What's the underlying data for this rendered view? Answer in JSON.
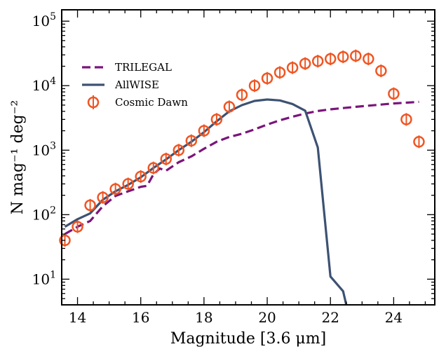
{
  "chart_data": {
    "type": "line",
    "xlabel": "Magnitude [3.6 μm]",
    "ylabel": "N  mag⁻¹ deg⁻²",
    "xlim": [
      13.5,
      25.3
    ],
    "ylim": [
      4,
      150000
    ],
    "yscale": "log",
    "x_ticks": [
      "14",
      "16",
      "18",
      "20",
      "22",
      "24"
    ],
    "y_ticks": [
      {
        "base": "10",
        "exp": "1"
      },
      {
        "base": "10",
        "exp": "2"
      },
      {
        "base": "10",
        "exp": "3"
      },
      {
        "base": "10",
        "exp": "4"
      },
      {
        "base": "10",
        "exp": "5"
      }
    ],
    "legend_position": "upper-left",
    "series": [
      {
        "name": "TRILEGAL",
        "style": "dashed",
        "color": "#7b157a",
        "x": [
          13.6,
          14.0,
          14.4,
          14.8,
          15.2,
          15.6,
          16.0,
          16.2,
          16.4,
          16.6,
          16.8,
          17.2,
          17.6,
          18.0,
          18.4,
          18.8,
          19.2,
          19.6,
          20.0,
          20.4,
          20.8,
          21.2,
          21.6,
          22.0,
          22.4,
          22.8,
          23.2,
          23.6,
          24.0,
          24.4,
          24.8
        ],
        "y": [
          50,
          65,
          80,
          135,
          195,
          230,
          270,
          280,
          420,
          520,
          480,
          650,
          800,
          1050,
          1350,
          1600,
          1800,
          2100,
          2500,
          2900,
          3300,
          3700,
          4050,
          4300,
          4500,
          4700,
          4900,
          5100,
          5300,
          5450,
          5600
        ]
      },
      {
        "name": "AllWISE",
        "style": "solid",
        "color": "#3d5273",
        "x": [
          13.6,
          14.0,
          14.4,
          14.8,
          15.2,
          15.6,
          16.0,
          16.4,
          16.8,
          17.2,
          17.6,
          18.0,
          18.4,
          18.8,
          19.2,
          19.6,
          20.0,
          20.4,
          20.8,
          21.2,
          21.6,
          22.0,
          22.4,
          22.5
        ],
        "y": [
          65,
          85,
          105,
          170,
          230,
          290,
          380,
          530,
          720,
          1000,
          1350,
          1900,
          2800,
          4000,
          5000,
          5800,
          6100,
          5900,
          5200,
          4100,
          1100,
          11,
          6.5,
          4
        ]
      },
      {
        "name": "Cosmic Dawn",
        "style": "markers",
        "color": "#f05522",
        "x": [
          13.6,
          14.0,
          14.4,
          14.8,
          15.2,
          15.6,
          16.0,
          16.4,
          16.8,
          17.2,
          17.6,
          18.0,
          18.4,
          18.8,
          19.2,
          19.6,
          20.0,
          20.4,
          20.8,
          21.2,
          21.6,
          22.0,
          22.4,
          22.8,
          23.2,
          23.6,
          24.0,
          24.4,
          24.8
        ],
        "y": [
          40,
          65,
          140,
          185,
          250,
          300,
          390,
          530,
          730,
          1000,
          1400,
          2000,
          3000,
          4700,
          7200,
          10000,
          13000,
          16000,
          19000,
          22000,
          24000,
          26000,
          28000,
          29000,
          26000,
          17000,
          7500,
          3000,
          1350
        ]
      }
    ]
  }
}
